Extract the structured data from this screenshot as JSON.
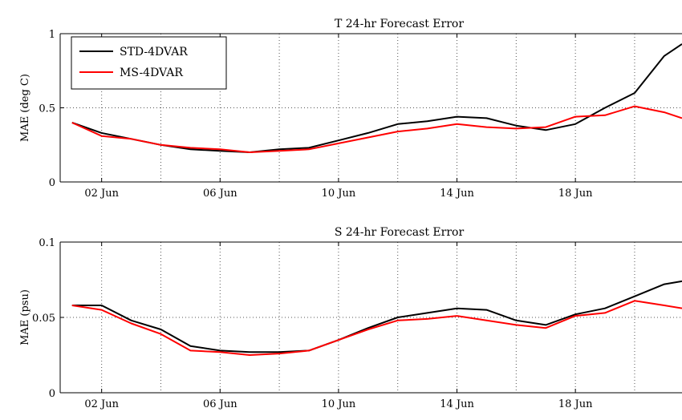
{
  "chart_data": [
    {
      "type": "line",
      "title": "T 24-hr Forecast Error",
      "xlabel": "",
      "ylabel": "MAE (deg C)",
      "xlim": [
        0.6,
        21.6
      ],
      "ylim": [
        0,
        1
      ],
      "yticks": [
        0,
        0.5,
        1
      ],
      "ytick_labels": [
        "0",
        "0.5",
        "1"
      ],
      "xticks": [
        2,
        6,
        10,
        14,
        18
      ],
      "xtick_labels": [
        "02 Jun",
        "06 Jun",
        "10 Jun",
        "14 Jun",
        "18 Jun"
      ],
      "grid": true,
      "grid_style": "dotted",
      "legend_position": "top-left",
      "x": [
        1,
        2,
        3,
        4,
        5,
        6,
        7,
        8,
        9,
        10,
        11,
        12,
        13,
        14,
        15,
        16,
        17,
        18,
        19,
        20,
        21,
        21.6
      ],
      "series": [
        {
          "name": "STD-4DVAR",
          "color": "#000000",
          "values": [
            0.4,
            0.33,
            0.29,
            0.25,
            0.22,
            0.21,
            0.2,
            0.22,
            0.23,
            0.28,
            0.33,
            0.39,
            0.41,
            0.44,
            0.43,
            0.38,
            0.35,
            0.39,
            0.5,
            0.6,
            0.85,
            0.93
          ]
        },
        {
          "name": "MS-4DVAR",
          "color": "#ff0000",
          "values": [
            0.4,
            0.31,
            0.29,
            0.25,
            0.23,
            0.22,
            0.2,
            0.21,
            0.22,
            0.26,
            0.3,
            0.34,
            0.36,
            0.39,
            0.37,
            0.36,
            0.37,
            0.44,
            0.45,
            0.51,
            0.47,
            0.43
          ]
        }
      ]
    },
    {
      "type": "line",
      "title": "S 24-hr Forecast Error",
      "xlabel": "",
      "ylabel": "MAE (psu)",
      "xlim": [
        0.6,
        21.6
      ],
      "ylim": [
        0,
        0.1
      ],
      "yticks": [
        0,
        0.05,
        0.1
      ],
      "ytick_labels": [
        "0",
        "0.05",
        "0.1"
      ],
      "xticks": [
        2,
        6,
        10,
        14,
        18
      ],
      "xtick_labels": [
        "02 Jun",
        "06 Jun",
        "10 Jun",
        "14 Jun",
        "18 Jun"
      ],
      "grid": true,
      "grid_style": "dotted",
      "x": [
        1,
        2,
        3,
        4,
        5,
        6,
        7,
        8,
        9,
        10,
        11,
        12,
        13,
        14,
        15,
        16,
        17,
        18,
        19,
        20,
        21,
        21.6
      ],
      "series": [
        {
          "name": "STD-4DVAR",
          "color": "#000000",
          "values": [
            0.058,
            0.058,
            0.048,
            0.042,
            0.031,
            0.028,
            0.027,
            0.027,
            0.028,
            0.035,
            0.043,
            0.05,
            0.053,
            0.056,
            0.055,
            0.048,
            0.045,
            0.052,
            0.056,
            0.064,
            0.072,
            0.074
          ]
        },
        {
          "name": "MS-4DVAR",
          "color": "#ff0000",
          "values": [
            0.058,
            0.055,
            0.046,
            0.039,
            0.028,
            0.027,
            0.025,
            0.026,
            0.028,
            0.035,
            0.042,
            0.048,
            0.049,
            0.051,
            0.048,
            0.045,
            0.043,
            0.051,
            0.053,
            0.061,
            0.058,
            0.056
          ]
        }
      ]
    }
  ]
}
